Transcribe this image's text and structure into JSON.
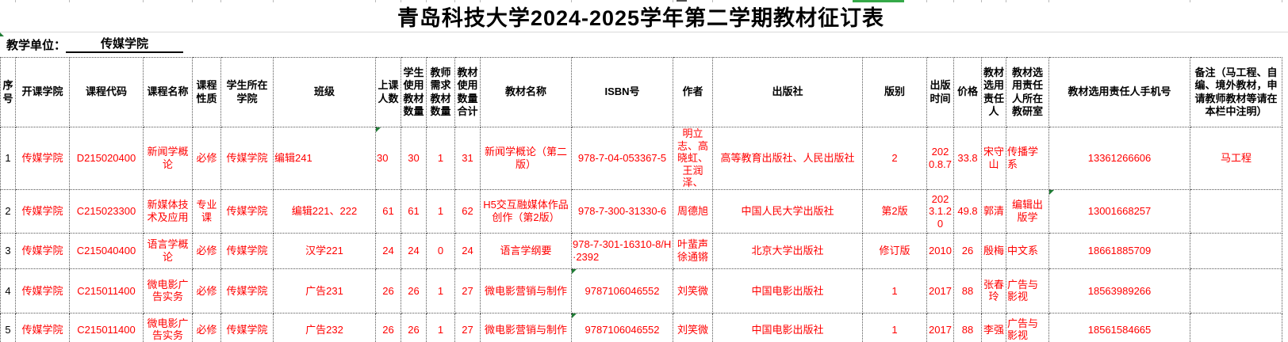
{
  "title": "青岛科技大学2024-2025学年第二学期教材征订表",
  "unit": {
    "label": "教学单位：",
    "value": "传媒学院"
  },
  "colors": {
    "data_text": "#ff0000",
    "header_text": "#000000",
    "error_triangle_green": "#1e7b34",
    "top_bar_green": "#35a948",
    "top_bar_dark": "#4d4d4d"
  },
  "columns": [
    {
      "label": "序号"
    },
    {
      "label": "开课学院"
    },
    {
      "label": "课程代码"
    },
    {
      "label": "课程名称"
    },
    {
      "label": "课程性质"
    },
    {
      "label": "学生所在学院"
    },
    {
      "label": "班级"
    },
    {
      "label": "上课人数"
    },
    {
      "label": "学生使用教材数量"
    },
    {
      "label": "教师需求教材数量"
    },
    {
      "label": "教材使用数量合计"
    },
    {
      "label": "教材名称"
    },
    {
      "label": "ISBN号"
    },
    {
      "label": "作者"
    },
    {
      "label": "出版社"
    },
    {
      "label": "版别"
    },
    {
      "label": "出版时间"
    },
    {
      "label": "价格"
    },
    {
      "label": "教材选用责任人"
    },
    {
      "label": "教材选用责任人所在教研室"
    },
    {
      "label": "教材选用责任人手机号"
    },
    {
      "label": "备注（马工程、自编、境外教材，申请教师教材等请在本栏中注明）"
    }
  ],
  "rows": [
    {
      "cells": [
        {
          "v": "1"
        },
        {
          "v": "传媒学院"
        },
        {
          "v": "D215020400"
        },
        {
          "v": "新闻学概论"
        },
        {
          "v": "必修"
        },
        {
          "v": "传媒学院"
        },
        {
          "v": "编辑241",
          "align": "left"
        },
        {
          "v": "30",
          "align": "left",
          "tri": "tl"
        },
        {
          "v": "30"
        },
        {
          "v": "1"
        },
        {
          "v": "31"
        },
        {
          "v": "新闻学概论（第二版）"
        },
        {
          "v": "978-7-04-053367-5"
        },
        {
          "v": "明立志、高晓虹、王润泽、"
        },
        {
          "v": "高等教育出版社、人民出版社"
        },
        {
          "v": "2"
        },
        {
          "v": "2020.8.7"
        },
        {
          "v": "33.8"
        },
        {
          "v": "宋守山"
        },
        {
          "v": "传播学系",
          "align": "left"
        },
        {
          "v": "13361266606"
        },
        {
          "v": "马工程"
        }
      ]
    },
    {
      "cells": [
        {
          "v": "2"
        },
        {
          "v": "传媒学院"
        },
        {
          "v": "C215023300"
        },
        {
          "v": "新媒体技术及应用"
        },
        {
          "v": "专业课"
        },
        {
          "v": "传媒学院"
        },
        {
          "v": "编辑221、222"
        },
        {
          "v": "61"
        },
        {
          "v": "61"
        },
        {
          "v": "1"
        },
        {
          "v": "62"
        },
        {
          "v": "H5交互融媒体作品创作（第2版）"
        },
        {
          "v": "978-7-300-31330-6"
        },
        {
          "v": "周德旭"
        },
        {
          "v": "中国人民大学出版社"
        },
        {
          "v": "第2版"
        },
        {
          "v": "2023.1.20"
        },
        {
          "v": "49.8"
        },
        {
          "v": "郭清"
        },
        {
          "v": "编辑出版学"
        },
        {
          "v": "13001668257",
          "tri": "tl"
        },
        {
          "v": ""
        }
      ]
    },
    {
      "cells": [
        {
          "v": "3"
        },
        {
          "v": "传媒学院"
        },
        {
          "v": "C215040400"
        },
        {
          "v": "语言学概论"
        },
        {
          "v": "必修"
        },
        {
          "v": "传媒学院"
        },
        {
          "v": "汉学221"
        },
        {
          "v": "24"
        },
        {
          "v": "24"
        },
        {
          "v": "0"
        },
        {
          "v": "24"
        },
        {
          "v": "语言学纲要"
        },
        {
          "v": "978-7-301-16310-8/H·2392",
          "align": "left"
        },
        {
          "v": "叶蜚声徐通锵"
        },
        {
          "v": "北京大学出版社"
        },
        {
          "v": "修订版"
        },
        {
          "v": "2010"
        },
        {
          "v": "26"
        },
        {
          "v": "殷梅"
        },
        {
          "v": "中文系",
          "align": "left"
        },
        {
          "v": "18661885709"
        },
        {
          "v": ""
        }
      ]
    },
    {
      "cells": [
        {
          "v": "4"
        },
        {
          "v": "传媒学院"
        },
        {
          "v": "C215011400"
        },
        {
          "v": "微电影广告实务"
        },
        {
          "v": "必修"
        },
        {
          "v": "传媒学院"
        },
        {
          "v": "广告231"
        },
        {
          "v": "26"
        },
        {
          "v": "26"
        },
        {
          "v": "1"
        },
        {
          "v": "27"
        },
        {
          "v": "微电影营销与制作"
        },
        {
          "v": "9787106046552",
          "tri": "tl"
        },
        {
          "v": "刘笑微"
        },
        {
          "v": "中国电影出版社"
        },
        {
          "v": "1"
        },
        {
          "v": "2017"
        },
        {
          "v": "88"
        },
        {
          "v": "张春玲"
        },
        {
          "v": "广告与影视",
          "align": "left"
        },
        {
          "v": "18563989266"
        },
        {
          "v": ""
        }
      ]
    },
    {
      "cells": [
        {
          "v": "5"
        },
        {
          "v": "传媒学院"
        },
        {
          "v": "C215011400"
        },
        {
          "v": "微电影广告实务"
        },
        {
          "v": "必修"
        },
        {
          "v": "传媒学院"
        },
        {
          "v": "广告232"
        },
        {
          "v": "26"
        },
        {
          "v": "26"
        },
        {
          "v": "1"
        },
        {
          "v": "27"
        },
        {
          "v": "微电影营销与制作"
        },
        {
          "v": "9787106046552",
          "tri": "tl"
        },
        {
          "v": "刘笑微"
        },
        {
          "v": "中国电影出版社"
        },
        {
          "v": "1"
        },
        {
          "v": "2017"
        },
        {
          "v": "88"
        },
        {
          "v": "李强"
        },
        {
          "v": "广告与影视",
          "align": "left"
        },
        {
          "v": "18561584665"
        },
        {
          "v": ""
        }
      ]
    }
  ]
}
